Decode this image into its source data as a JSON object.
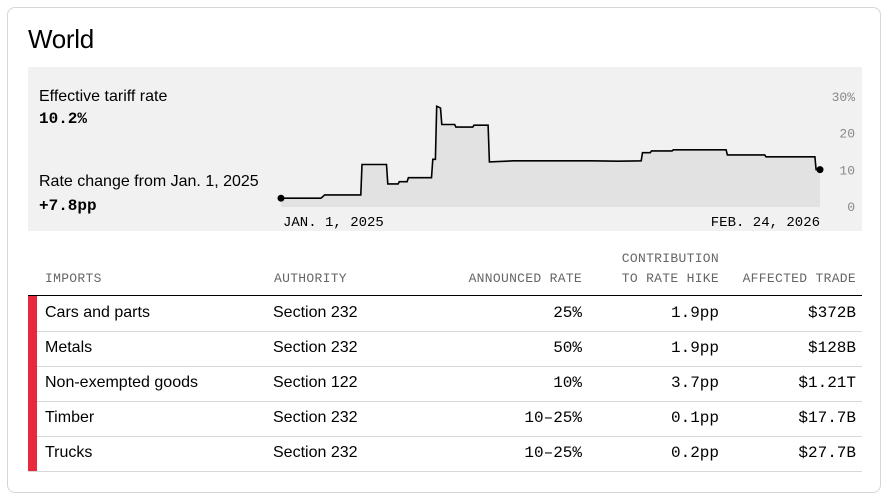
{
  "card": {
    "title": "World",
    "effective_label": "Effective tariff rate",
    "effective_value": "10.2%",
    "change_label": "Rate change from Jan. 1, 2025",
    "change_value": "+7.8pp"
  },
  "chart_data": {
    "type": "line",
    "xlim": [
      "2025-01-01",
      "2026-02-24"
    ],
    "ylim": [
      0,
      30
    ],
    "x_tick_labels": [
      "JAN. 1, 2025",
      "FEB. 24, 2026"
    ],
    "y_tick_labels": [
      "30%",
      "20",
      "10",
      "0"
    ],
    "y_tick_values": [
      30,
      20,
      10,
      0
    ],
    "grid": false,
    "style": "step-area",
    "line_color": "#000000",
    "fill_color": "#e2e2e2",
    "points": [
      [
        "2025-01-01",
        2.4
      ],
      [
        "2025-02-01",
        2.4
      ],
      [
        "2025-02-04",
        3.3
      ],
      [
        "2025-03-04",
        3.3
      ],
      [
        "2025-03-05",
        11.6
      ],
      [
        "2025-03-24",
        11.6
      ],
      [
        "2025-03-25",
        6.3
      ],
      [
        "2025-04-02",
        6.3
      ],
      [
        "2025-04-03",
        6.9
      ],
      [
        "2025-04-09",
        6.9
      ],
      [
        "2025-04-10",
        8.0
      ],
      [
        "2025-04-28",
        8.0
      ],
      [
        "2025-04-29",
        13.0
      ],
      [
        "2025-05-01",
        13.0
      ],
      [
        "2025-05-02",
        27.5
      ],
      [
        "2025-05-05",
        27.0
      ],
      [
        "2025-05-06",
        22.5
      ],
      [
        "2025-05-16",
        22.5
      ],
      [
        "2025-05-17",
        21.8
      ],
      [
        "2025-05-30",
        21.8
      ],
      [
        "2025-05-31",
        22.3
      ],
      [
        "2025-06-11",
        22.3
      ],
      [
        "2025-06-12",
        12.3
      ],
      [
        "2025-07-01",
        12.6
      ],
      [
        "2025-07-20",
        12.6
      ],
      [
        "2025-08-30",
        12.6
      ],
      [
        "2025-09-20",
        12.5
      ],
      [
        "2025-10-08",
        12.6
      ],
      [
        "2025-10-09",
        14.8
      ],
      [
        "2025-10-15",
        14.8
      ],
      [
        "2025-10-16",
        15.3
      ],
      [
        "2025-11-01",
        15.3
      ],
      [
        "2025-11-02",
        15.6
      ],
      [
        "2025-12-13",
        15.6
      ],
      [
        "2025-12-14",
        14.2
      ],
      [
        "2026-01-12",
        14.2
      ],
      [
        "2026-01-13",
        13.7
      ],
      [
        "2026-02-20",
        13.7
      ],
      [
        "2026-02-21",
        10.2
      ],
      [
        "2026-02-24",
        10.2
      ]
    ]
  },
  "table": {
    "headers": [
      "IMPORTS",
      "AUTHORITY",
      "ANNOUNCED RATE",
      "CONTRIBUTION",
      "TO RATE HIKE",
      "AFFECTED TRADE"
    ],
    "rows": [
      {
        "imports": "Cars and parts",
        "authority": "Section 232",
        "rate": "25%",
        "contribution": "1.9pp",
        "trade": "$372B"
      },
      {
        "imports": "Metals",
        "authority": "Section 232",
        "rate": "50%",
        "contribution": "1.9pp",
        "trade": "$128B"
      },
      {
        "imports": "Non-exempted goods",
        "authority": "Section 122",
        "rate": "10%",
        "contribution": "3.7pp",
        "trade": "$1.21T"
      },
      {
        "imports": "Timber",
        "authority": "Section 232",
        "rate": "10–25%",
        "contribution": "0.1pp",
        "trade": "$17.7B"
      },
      {
        "imports": "Trucks",
        "authority": "Section 232",
        "rate": "10–25%",
        "contribution": "0.2pp",
        "trade": "$27.7B"
      }
    ],
    "row_accent_color": "#e8283c"
  }
}
